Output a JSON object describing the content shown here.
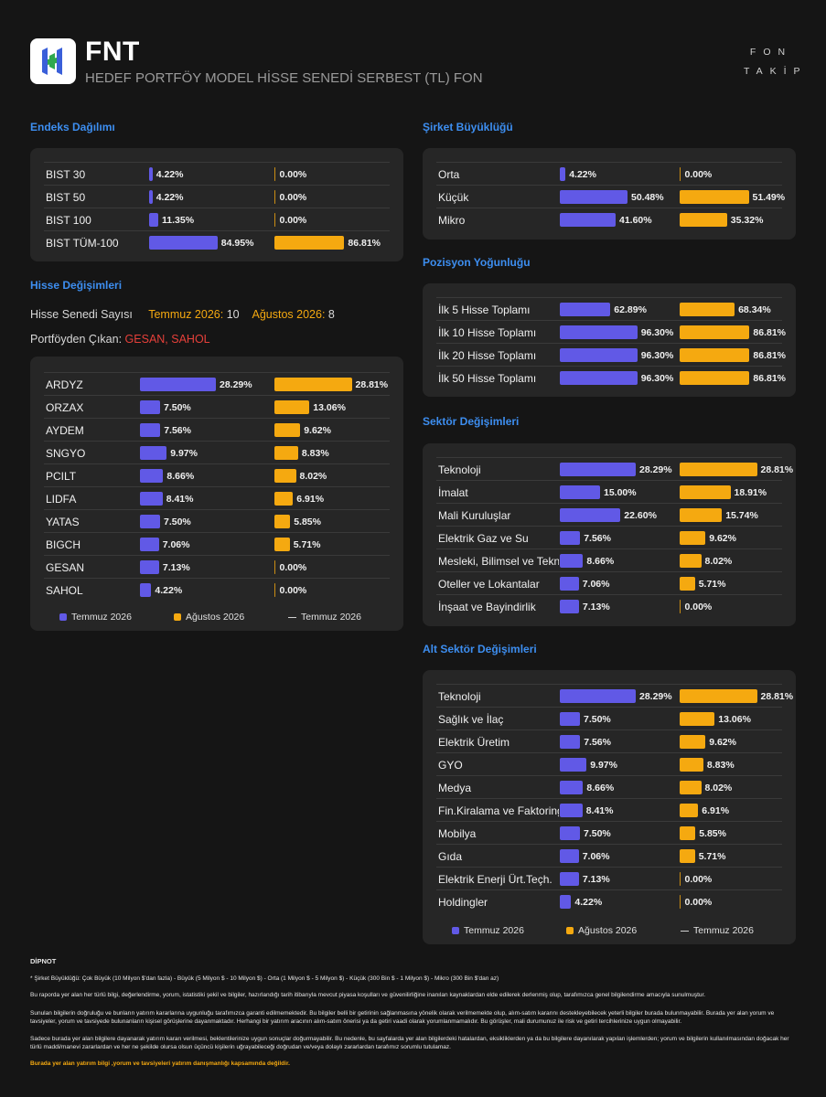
{
  "header": {
    "code": "FNT",
    "name": "HEDEF PORTFÖY MODEL HİSSE SENEDİ SERBEST (TL) FON",
    "brand_line1": "FON",
    "brand_line2": "TAKİP"
  },
  "colors": {
    "july": "#6159e6",
    "august": "#f5a910",
    "background": "#151515",
    "panel": "#262626",
    "title": "#3d8ef0"
  },
  "info": {
    "count_label": "Hisse Senedi Sayısı",
    "july_label": "Temmuz 2026:",
    "july_count": "10",
    "aug_label": "Ağustos 2026:",
    "aug_count": "8",
    "removed_label": "Portföyden Çıkan:",
    "removed_value": "GESAN, SAHOL"
  },
  "legend": {
    "july": "Temmuz 2026",
    "august": "Ağustos 2026",
    "line": "Temmuz 2026"
  },
  "chart_data": [
    {
      "id": "endeks",
      "title": "Endeks Dağılımı",
      "type": "bar",
      "max": 100,
      "series": [
        {
          "name": "Temmuz 2026"
        },
        {
          "name": "Ağustos 2026"
        }
      ],
      "categories": [
        "BIST 30",
        "BIST 50",
        "BIST 100",
        "BIST TÜM-100"
      ],
      "july": [
        4.22,
        4.22,
        11.35,
        84.95
      ],
      "august": [
        0.0,
        0.0,
        0.0,
        86.81
      ],
      "july_labels": [
        "4.22%",
        "4.22%",
        "11.35%",
        "84.95%"
      ],
      "august_labels": [
        "0.00%",
        "0.00%",
        "0.00%",
        "86.81%"
      ]
    },
    {
      "id": "hisse",
      "title": "Hisse Değişimleri",
      "type": "bar",
      "max": 30,
      "series": [
        {
          "name": "Temmuz 2026"
        },
        {
          "name": "Ağustos 2026"
        }
      ],
      "categories": [
        "ARDYZ",
        "ORZAX",
        "AYDEM",
        "SNGYO",
        "PCILT",
        "LIDFA",
        "YATAS",
        "BIGCH",
        "GESAN",
        "SAHOL"
      ],
      "july": [
        28.29,
        7.5,
        7.56,
        9.97,
        8.66,
        8.41,
        7.5,
        7.06,
        7.13,
        4.22
      ],
      "august": [
        28.81,
        13.06,
        9.62,
        8.83,
        8.02,
        6.91,
        5.85,
        5.71,
        0.0,
        0.0
      ],
      "july_labels": [
        "28.29%",
        "7.50%",
        "7.56%",
        "9.97%",
        "8.66%",
        "8.41%",
        "7.50%",
        "7.06%",
        "7.13%",
        "4.22%"
      ],
      "august_labels": [
        "28.81%",
        "13.06%",
        "9.62%",
        "8.83%",
        "8.02%",
        "6.91%",
        "5.85%",
        "5.71%",
        "0.00%",
        "0.00%"
      ]
    },
    {
      "id": "sirket",
      "title": "Şirket Büyüklüğü",
      "type": "bar",
      "max": 60,
      "series": [
        {
          "name": "Temmuz 2026"
        },
        {
          "name": "Ağustos 2026"
        }
      ],
      "categories": [
        "Orta",
        "Küçük",
        "Mikro"
      ],
      "july": [
        4.22,
        50.48,
        41.6
      ],
      "august": [
        0.0,
        51.49,
        35.32
      ],
      "july_labels": [
        "4.22%",
        "50.48%",
        "41.60%"
      ],
      "august_labels": [
        "0.00%",
        "51.49%",
        "35.32%"
      ]
    },
    {
      "id": "pozisyon",
      "title": "Pozisyon Yoğunluğu",
      "type": "bar",
      "max": 100,
      "series": [
        {
          "name": "Temmuz 2026"
        },
        {
          "name": "Ağustos 2026"
        }
      ],
      "categories": [
        "İlk 5 Hisse Toplamı",
        "İlk 10 Hisse Toplamı",
        "İlk 20 Hisse Toplamı",
        "İlk 50 Hisse Toplamı"
      ],
      "july": [
        62.89,
        96.3,
        96.3,
        96.3
      ],
      "august": [
        68.34,
        86.81,
        86.81,
        86.81
      ],
      "july_labels": [
        "62.89%",
        "96.30%",
        "96.30%",
        "96.30%"
      ],
      "august_labels": [
        "68.34%",
        "86.81%",
        "86.81%",
        "86.81%"
      ]
    },
    {
      "id": "sektor",
      "title": "Sektör Değişimleri",
      "type": "bar",
      "max": 30,
      "series": [
        {
          "name": "Temmuz 2026"
        },
        {
          "name": "Ağustos 2026"
        }
      ],
      "categories": [
        "Teknoloji",
        "İmalat",
        "Mali Kuruluşlar",
        "Elektrik Gaz ve Su",
        "Mesleki, Bilimsel ve Teknik Faaliyetler",
        "Oteller ve Lokantalar",
        "İnşaat ve Bayindirlik"
      ],
      "july": [
        28.29,
        15.0,
        22.6,
        7.56,
        8.66,
        7.06,
        7.13
      ],
      "august": [
        28.81,
        18.91,
        15.74,
        9.62,
        8.02,
        5.71,
        0.0
      ],
      "july_labels": [
        "28.29%",
        "15.00%",
        "22.60%",
        "7.56%",
        "8.66%",
        "7.06%",
        "7.13%"
      ],
      "august_labels": [
        "28.81%",
        "18.91%",
        "15.74%",
        "9.62%",
        "8.02%",
        "5.71%",
        "0.00%"
      ]
    },
    {
      "id": "alt",
      "title": "Alt Sektör Değişimleri",
      "type": "bar",
      "max": 30,
      "series": [
        {
          "name": "Temmuz 2026"
        },
        {
          "name": "Ağustos 2026"
        }
      ],
      "categories": [
        "Teknoloji",
        "Sağlık ve İlaç",
        "Elektrik Üretim",
        "GYO",
        "Medya",
        "Fin.Kiralama ve Faktoring",
        "Mobilya",
        "Gıda",
        "Elektrik Enerji Ürt.Teçh.",
        "Holdingler"
      ],
      "july": [
        28.29,
        7.5,
        7.56,
        9.97,
        8.66,
        8.41,
        7.5,
        7.06,
        7.13,
        4.22
      ],
      "august": [
        28.81,
        13.06,
        9.62,
        8.83,
        8.02,
        6.91,
        5.85,
        5.71,
        0.0,
        0.0
      ],
      "july_labels": [
        "28.29%",
        "7.50%",
        "7.56%",
        "9.97%",
        "8.66%",
        "8.41%",
        "7.50%",
        "7.06%",
        "7.13%",
        "4.22%"
      ],
      "august_labels": [
        "28.81%",
        "13.06%",
        "9.62%",
        "8.83%",
        "8.02%",
        "6.91%",
        "5.85%",
        "5.71%",
        "0.00%",
        "0.00%"
      ]
    }
  ],
  "footnote": {
    "title": "DİPNOT",
    "p1": "* Şirket Büyüklüğü: Çok Büyük (10 Milyon $'dan fazla) - Büyük (5 Milyon $ - 10 Milyon $) - Orta (1 Milyon $ - 5 Milyon $) - Küçük (300 Bin $ - 1 Milyon $) - Mikro (300 Bin $'dan az)",
    "p2": "Bu raporda yer alan her türlü bilgi, değerlendirme, yorum, istatistiki şekil ve bilgiler, hazırlandığı tarih itibarıyla mevcut piyasa koşulları ve güvenilirliğine inanılan kaynaklardan elde edilerek derlenmiş olup, tarafımızca genel bilgilendirme amacıyla sunulmuştur.",
    "p3": "Sunulan bilgilerin doğruluğu ve bunların yatırım kararlarına uygunluğu tarafımızca garanti edilmemektedir. Bu bilgiler belli bir getirinin sağlanmasına yönelik olarak verilmemekte olup, alım-satım kararını destekleyebilecek yeterli bilgiler burada bulunmayabilir. Burada yer alan yorum ve tavsiyeler, yorum ve tavsiyede bulunanların kişisel görüşlerine dayanmaktadır. Herhangi bir yatırım aracının alım-satım önerisi ya da getiri vaadi olarak yorumlanmamalıdır. Bu görüşler, mali durumunuz ile risk ve getiri tercihlerinize uygun olmayabilir.",
    "p4": "Sadece burada yer alan bilgilere dayanarak yatırım kararı verilmesi, beklentilerinize uygun sonuçlar doğurmayabilir. Bu nedenle, bu sayfalarda yer alan bilgilerdeki hatalardan, eksikliklerden ya da bu bilgilere dayanılarak yapılan işlemlerden; yorum ve bilgilerin kullanılmasından doğacak her türlü maddi/manevi zararlardan ve her ne şekilde olursa olsun üçüncü kişilerin uğrayabileceği doğrudan ve/veya dolaylı zararlardan tarafımız sorumlu tutulamaz.",
    "warn": "Burada yer alan yatırım bilgi ,yorum ve tavsiyeleri yatırım danışmanlığı kapsamında değildir."
  }
}
